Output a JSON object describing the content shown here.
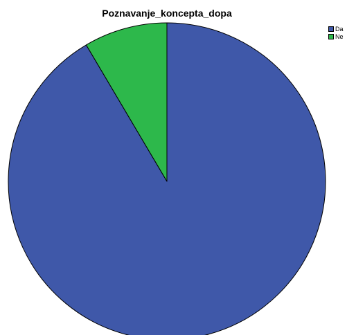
{
  "chart_data": {
    "type": "pie",
    "title": "Poznavanje_koncepta_dopa",
    "categories": [
      "Da",
      "Ne"
    ],
    "values": [
      91.5,
      8.5
    ],
    "colors": [
      "#3f58a9",
      "#2db84b"
    ],
    "legend_position": "top-right",
    "start_angle_deg": 0,
    "direction": "clockwise"
  }
}
